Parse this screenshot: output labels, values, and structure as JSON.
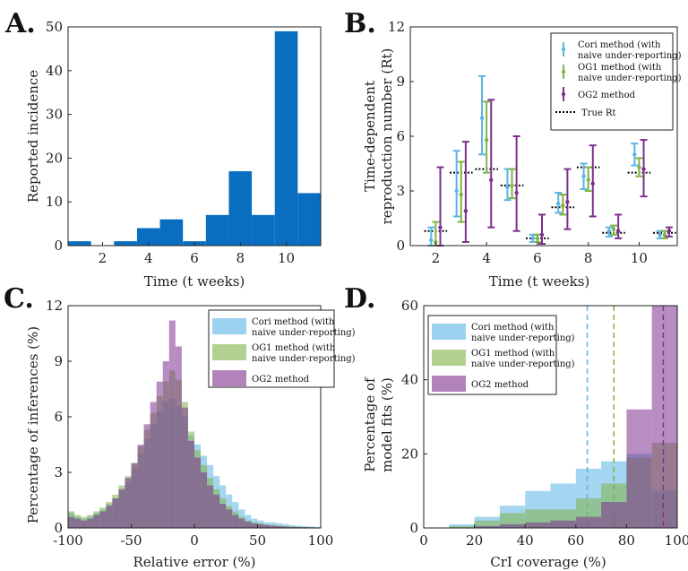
{
  "colors": {
    "blue": "#0a6ec0",
    "cori": "#5ab4e6",
    "og1": "#7fb347",
    "og2": "#7e2f8e",
    "axis": "#222222"
  },
  "chart_data": [
    {
      "id": "A",
      "panel_label": "A.",
      "type": "bar",
      "xlabel": "Time  (t weeks)",
      "ylabel": "Reported  incidence",
      "xlim": [
        0.5,
        11.5
      ],
      "ylim": [
        0,
        50
      ],
      "xticks": [
        2,
        4,
        6,
        8,
        10
      ],
      "yticks": [
        0,
        10,
        20,
        30,
        40,
        50
      ],
      "bin_width": 1,
      "x": [
        1,
        2,
        3,
        4,
        5,
        6,
        7,
        8,
        9,
        10,
        11
      ],
      "values": [
        1,
        0,
        1,
        4,
        6,
        1,
        7,
        17,
        7,
        49,
        12
      ]
    },
    {
      "id": "B",
      "panel_label": "B.",
      "type": "errorbar",
      "xlabel": "Time  (t weeks)",
      "ylabel_line1": "Time-dependent",
      "ylabel_line2": "reproduction  number  (Rt)",
      "xlim": [
        1,
        11.5
      ],
      "ylim": [
        0,
        12
      ],
      "xticks": [
        2,
        4,
        6,
        8,
        10
      ],
      "yticks": [
        0,
        3,
        6,
        9,
        12
      ],
      "weeks": [
        2,
        3,
        4,
        5,
        6,
        7,
        8,
        9,
        10,
        11
      ],
      "true_rt": [
        0.8,
        4.0,
        4.2,
        3.3,
        0.4,
        2.1,
        4.3,
        0.7,
        4.0,
        0.7
      ],
      "series": [
        {
          "name": "Cori  method  (with",
          "name2": "naive  under-reporting)",
          "color_key": "cori",
          "offset": -0.18,
          "mid": [
            0.3,
            3.0,
            7.0,
            3.2,
            0.4,
            2.3,
            3.8,
            0.8,
            5.0,
            0.6
          ],
          "low": [
            0.0,
            1.6,
            5.0,
            2.5,
            0.2,
            1.8,
            3.1,
            0.5,
            4.4,
            0.4
          ],
          "high": [
            1.0,
            5.2,
            9.3,
            4.2,
            0.6,
            2.9,
            4.5,
            1.0,
            5.6,
            0.8
          ]
        },
        {
          "name": "OG1  method  (with",
          "name2": "naive  under-reporting)",
          "color_key": "og1",
          "offset": 0.0,
          "mid": [
            0.2,
            2.8,
            5.8,
            3.3,
            0.4,
            2.2,
            3.6,
            0.9,
            4.3,
            0.6
          ],
          "low": [
            0.0,
            1.3,
            4.0,
            2.6,
            0.2,
            1.7,
            3.0,
            0.6,
            3.8,
            0.4
          ],
          "high": [
            1.3,
            4.6,
            7.9,
            4.2,
            0.6,
            2.8,
            4.3,
            1.1,
            4.8,
            0.8
          ]
        },
        {
          "name": "OG2  method",
          "name2": "",
          "color_key": "og2",
          "offset": 0.18,
          "mid": [
            1.0,
            1.9,
            3.6,
            2.9,
            0.6,
            2.4,
            3.4,
            0.8,
            4.2,
            0.8
          ],
          "low": [
            0.0,
            0.2,
            1.0,
            0.8,
            0.1,
            0.9,
            1.6,
            0.4,
            2.7,
            0.5
          ],
          "high": [
            4.3,
            5.7,
            8.0,
            6.0,
            1.7,
            4.2,
            5.5,
            1.7,
            5.8,
            1.0
          ]
        }
      ],
      "legend_true": "True  Rt"
    },
    {
      "id": "C",
      "panel_label": "C.",
      "type": "histogram",
      "xlabel": "Relative  error  (%)",
      "ylabel": "Percentage  of  inferences  (%)",
      "xlim": [
        -100,
        100
      ],
      "ylim": [
        0,
        12
      ],
      "xticks": [
        -100,
        -50,
        0,
        50,
        100
      ],
      "yticks": [
        0,
        3,
        6,
        9,
        12
      ],
      "bin_start": -100,
      "bin_width": 5,
      "series": [
        {
          "name": "Cori  method  (with",
          "name2": "naive  under-reporting)",
          "color_key": "cori",
          "values": [
            0.8,
            0.6,
            0.5,
            0.6,
            0.8,
            1.0,
            1.3,
            1.6,
            2.0,
            2.5,
            3.2,
            4.0,
            4.8,
            5.6,
            6.3,
            6.8,
            7.0,
            6.6,
            6.0,
            5.0,
            4.5,
            3.9,
            3.4,
            2.8,
            2.3,
            1.8,
            1.4,
            1.0,
            0.7,
            0.5,
            0.4,
            0.3,
            0.3,
            0.25,
            0.2,
            0.15,
            0.12,
            0.1,
            0.08,
            0.05
          ]
        },
        {
          "name": "OG1  method  (with",
          "name2": "naive  under-reporting)",
          "color_key": "og1",
          "values": [
            0.9,
            0.7,
            0.6,
            0.7,
            0.9,
            1.1,
            1.4,
            1.8,
            2.3,
            2.8,
            3.5,
            4.4,
            5.3,
            6.2,
            7.1,
            7.9,
            8.5,
            8.0,
            6.8,
            5.2,
            4.2,
            3.4,
            2.7,
            2.1,
            1.6,
            1.2,
            0.9,
            0.6,
            0.4,
            0.3,
            0.25,
            0.2,
            0.15,
            0.12,
            0.1,
            0.08,
            0.06,
            0.05,
            0.04,
            0.03
          ]
        },
        {
          "name": "OG2  method",
          "name2": "",
          "color_key": "og2",
          "values": [
            0.6,
            0.5,
            0.4,
            0.5,
            0.7,
            0.9,
            1.2,
            1.6,
            2.1,
            2.7,
            3.5,
            4.5,
            5.6,
            6.8,
            7.9,
            9.0,
            11.2,
            9.8,
            6.5,
            4.7,
            3.8,
            3.0,
            2.3,
            1.8,
            1.3,
            1.0,
            0.7,
            0.5,
            0.35,
            0.25,
            0.2,
            0.15,
            0.12,
            0.1,
            0.08,
            0.06,
            0.05,
            0.04,
            0.03,
            0.02
          ]
        }
      ]
    },
    {
      "id": "D",
      "panel_label": "D.",
      "type": "histogram",
      "xlabel": "CrI  coverage  (%)",
      "ylabel_line1": "Percentage  of",
      "ylabel_line2": "model  fits  (%)",
      "xlim": [
        0,
        100
      ],
      "ylim": [
        0,
        60
      ],
      "xticks": [
        0,
        20,
        40,
        60,
        80,
        100
      ],
      "yticks": [
        0,
        20,
        40,
        60
      ],
      "bin_start": 10,
      "bin_width": 10,
      "series": [
        {
          "name": "Cori  method  (with",
          "name2": "naive  under-reporting)",
          "color_key": "cori",
          "values": [
            1,
            3,
            6,
            10,
            12,
            16,
            18,
            20,
            10
          ],
          "mean": 64.5
        },
        {
          "name": "OG1  method  (with",
          "name2": "naive  under-reporting)",
          "color_key": "og1",
          "values": [
            0.5,
            2,
            4,
            5,
            5,
            8,
            12,
            19,
            23
          ],
          "mean": 75
        },
        {
          "name": "OG2  method",
          "name2": "",
          "color_key": "og2",
          "values": [
            0,
            0.5,
            1,
            1.5,
            2,
            3,
            7,
            32,
            60
          ],
          "mean": 94.5
        }
      ]
    }
  ]
}
